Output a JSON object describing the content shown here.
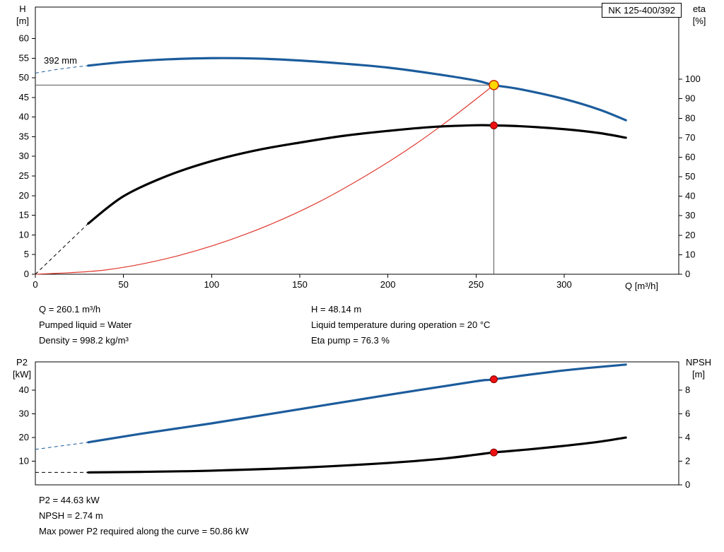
{
  "title_box": "NK 125-400/392",
  "impeller_label": "392 mm",
  "labels": {
    "h_name": "H",
    "h_unit": "[m]",
    "eta_name": "eta",
    "eta_unit": "[%]",
    "q_axis": "Q [m³/h]",
    "p2_name": "P2",
    "p2_unit": "[kW]",
    "npsh_name": "NPSH",
    "npsh_unit": "[m]"
  },
  "operating_point_info": {
    "left": [
      "Q = 260.1 m³/h",
      "Pumped liquid = Water",
      "Density = 998.2 kg/m³"
    ],
    "right": [
      "H = 48.14 m",
      "Liquid temperature during operation = 20 °C",
      "Eta pump = 76.3 %"
    ]
  },
  "power_info": [
    "P2 = 44.63 kW",
    "NPSH = 2.74 m",
    "Max power P2 required along the curve = 50.86 kW"
  ],
  "colors": {
    "curve_blue": "#1c5c9c",
    "curve_black": "#000000",
    "curve_red": "#e0392e",
    "duty_fill": "#ffd900",
    "duty_ring": "#cc3300",
    "dot_red": "#ee1111",
    "axis": "#000000",
    "crosshair": "#555555"
  },
  "chart_data": [
    {
      "id": "top",
      "name": "head-eta-chart",
      "type": "line",
      "title": "NK 125-400/392",
      "xlabel": "Q [m³/h]",
      "ylabel_left": "H [m]",
      "ylabel_right": "eta [%]",
      "xlim": [
        0,
        365
      ],
      "ylim_left": [
        0,
        68
      ],
      "ylim_right": [
        0,
        137
      ],
      "xticks": [
        0,
        50,
        100,
        150,
        200,
        250,
        300
      ],
      "yticks_left": [
        0,
        5,
        10,
        15,
        20,
        25,
        30,
        35,
        40,
        45,
        50,
        55,
        60
      ],
      "yticks_right": [
        0,
        10,
        20,
        30,
        40,
        50,
        60,
        70,
        80,
        90,
        100
      ],
      "grid": false,
      "crosshair": {
        "q": 260.1,
        "value": 48.14
      },
      "series": [
        {
          "name": "system-curve",
          "axis": "left",
          "color": "#e0392e",
          "width": 1.2,
          "x": [
            0,
            40,
            80,
            120,
            160,
            200,
            230,
            260.1
          ],
          "y": [
            0,
            1.1,
            4.6,
            10.3,
            18.2,
            28.5,
            37.7,
            48.14
          ]
        },
        {
          "name": "eta",
          "axis": "right",
          "color": "#000000",
          "width": 3.2,
          "dash_until": 30,
          "x": [
            0,
            15,
            30,
            50,
            75,
            100,
            125,
            150,
            175,
            200,
            225,
            250,
            260.1,
            275,
            300,
            320,
            335
          ],
          "y": [
            0,
            13,
            26,
            40,
            50.5,
            58,
            63.5,
            67.5,
            71,
            73.5,
            75.5,
            76.4,
            76.3,
            75.9,
            74.4,
            72.4,
            70
          ]
        },
        {
          "name": "head",
          "axis": "left",
          "color": "#1c5c9c",
          "width": 3.2,
          "dash_until": 30,
          "x": [
            0,
            15,
            30,
            50,
            75,
            100,
            125,
            150,
            175,
            200,
            225,
            250,
            260.1,
            275,
            300,
            320,
            335
          ],
          "y": [
            51.2,
            52.3,
            53.1,
            54.0,
            54.7,
            55.0,
            54.9,
            54.4,
            53.6,
            52.6,
            51.1,
            49.3,
            48.14,
            47.1,
            44.6,
            41.9,
            39.2
          ]
        }
      ],
      "markers": [
        {
          "name": "eta-point-marker",
          "q": 260.1,
          "value": 76.3,
          "axis": "right",
          "style": "red"
        },
        {
          "name": "duty-point-marker",
          "q": 260.1,
          "value": 48.14,
          "axis": "left",
          "style": "duty"
        }
      ]
    },
    {
      "id": "bottom",
      "name": "p2-npsh-chart",
      "type": "line",
      "ylabel_left": "P2 [kW]",
      "ylabel_right": "NPSH [m]",
      "xlim": [
        0,
        365
      ],
      "ylim_left": [
        0,
        52
      ],
      "ylim_right": [
        0,
        10.4
      ],
      "xticks": [],
      "yticks_left": [
        10,
        20,
        30,
        40
      ],
      "yticks_right": [
        0,
        2,
        4,
        6,
        8
      ],
      "grid": false,
      "series": [
        {
          "name": "p2",
          "axis": "left",
          "color": "#1c5c9c",
          "width": 3.2,
          "dash_until": 30,
          "x": [
            0,
            15,
            30,
            60,
            100,
            150,
            200,
            250,
            260.1,
            300,
            335
          ],
          "y": [
            15.0,
            16.5,
            18.0,
            21.6,
            26.0,
            32.0,
            38.0,
            43.8,
            44.63,
            48.4,
            50.86
          ]
        },
        {
          "name": "npsh",
          "axis": "right",
          "color": "#000000",
          "width": 3.2,
          "dash_until": 30,
          "x": [
            0,
            30,
            60,
            100,
            150,
            200,
            230,
            250,
            260.1,
            280,
            300,
            320,
            335
          ],
          "y": [
            1.05,
            1.05,
            1.1,
            1.2,
            1.45,
            1.85,
            2.2,
            2.55,
            2.74,
            3.0,
            3.3,
            3.65,
            4.0
          ]
        }
      ],
      "markers": [
        {
          "name": "p2-point-marker",
          "q": 260.1,
          "value": 44.63,
          "axis": "left",
          "style": "red"
        },
        {
          "name": "npsh-point-marker",
          "q": 260.1,
          "value": 2.74,
          "axis": "right",
          "style": "red"
        }
      ]
    }
  ]
}
